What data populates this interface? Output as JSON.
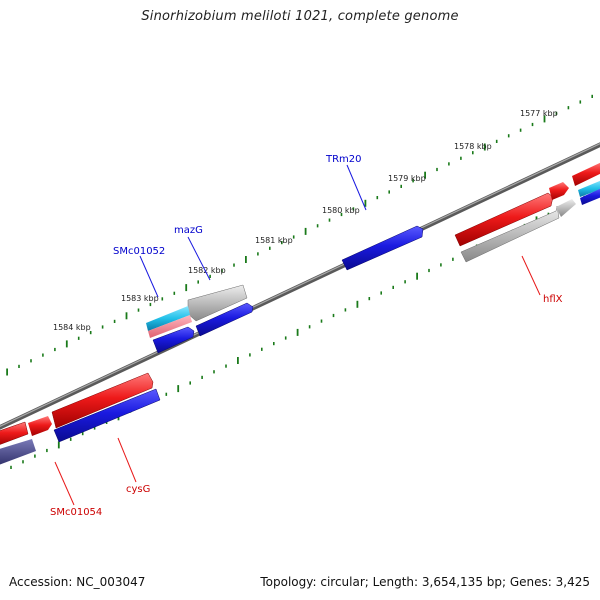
{
  "title": "Sinorhizobium meliloti 1021, complete genome",
  "footer": {
    "accession": "Accession: NC_003047",
    "summary": "Topology: circular; Length: 3,654,135 bp; Genes: 3,425"
  },
  "ticks": [
    {
      "label": "1577 kbp"
    },
    {
      "label": "1578 kbp"
    },
    {
      "label": "1579 kbp"
    },
    {
      "label": "1580 kbp"
    },
    {
      "label": "1581 kbp"
    },
    {
      "label": "1582 kbp"
    },
    {
      "label": "1583 kbp"
    },
    {
      "label": "1584 kbp"
    }
  ],
  "gene_labels": [
    {
      "name": "TRm20",
      "color": "#0000cc"
    },
    {
      "name": "mazG",
      "color": "#0000cc"
    },
    {
      "name": "SMc01052",
      "color": "#0000cc"
    },
    {
      "name": "hflX",
      "color": "#cc0000"
    },
    {
      "name": "cysG",
      "color": "#cc0000"
    },
    {
      "name": "SMc01054",
      "color": "#cc0000"
    }
  ],
  "colors": {
    "forward_gene": "#1a1ae0",
    "reverse_gene": "#e81a1a",
    "pseudo_gene": "#b8b8b8",
    "rna_gene": "#22c0e8",
    "tick": "#1a7a1a",
    "backbone": "#808080"
  }
}
